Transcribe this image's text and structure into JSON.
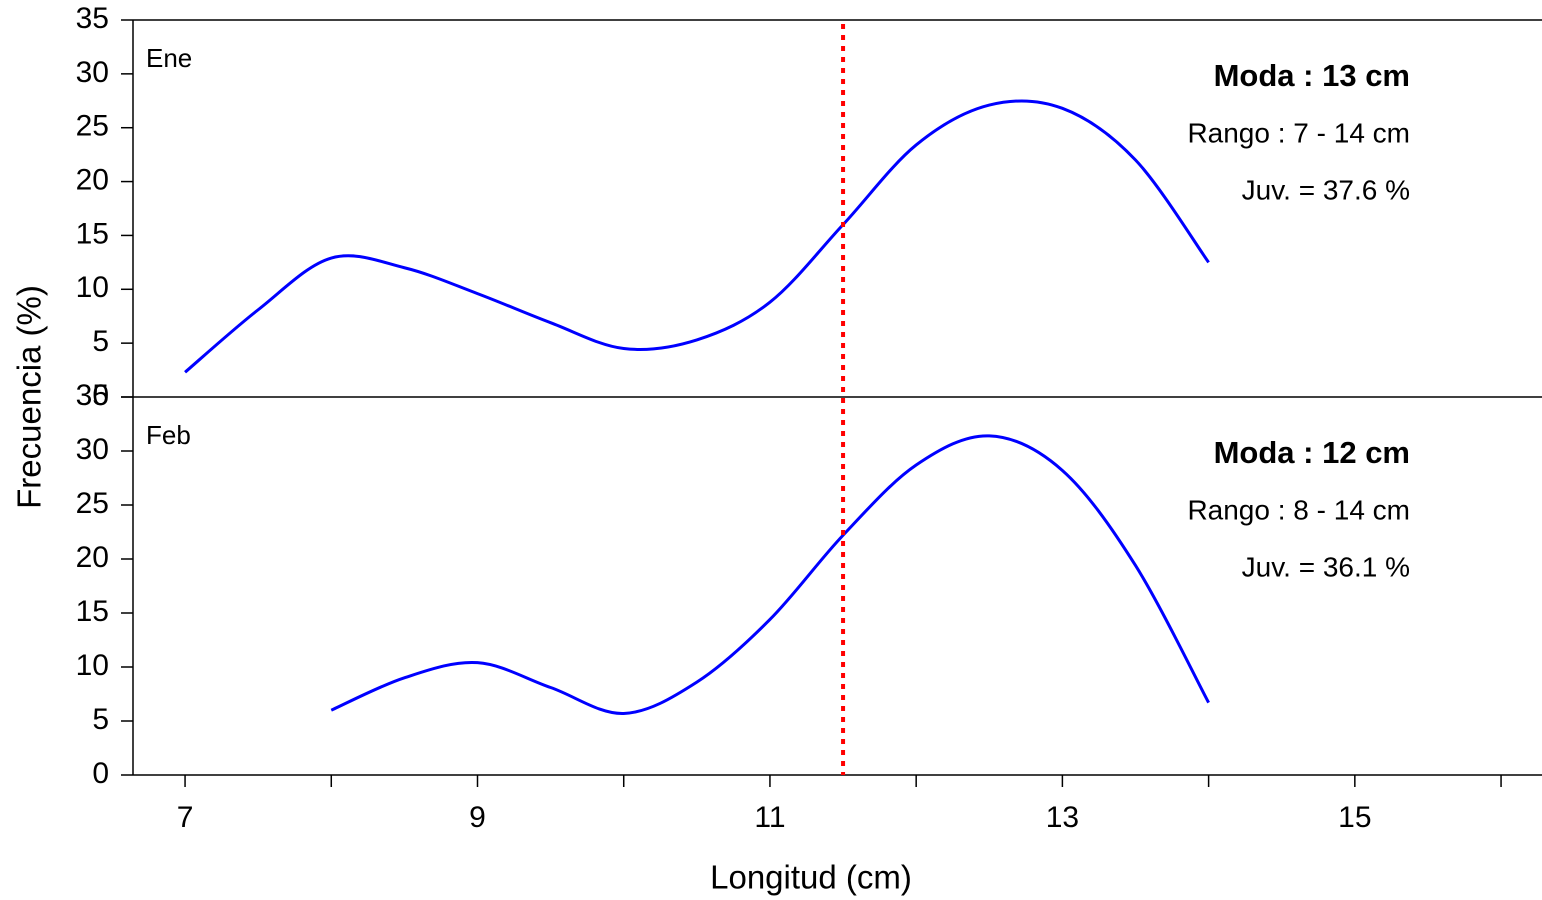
{
  "chart_data": {
    "type": "line",
    "xlabel": "Longitud (cm)",
    "ylabel": "Frecuencia (%)",
    "xlim": [
      6.644,
      16.28
    ],
    "xticks": [
      7,
      9,
      11,
      13,
      15
    ],
    "xminorticks": [
      8,
      10,
      12,
      14,
      16
    ],
    "vline": 11.5,
    "vline_color": "#ff0000",
    "panels": [
      {
        "label": "Ene",
        "color": "#0000ff",
        "x": [
          7,
          7.5,
          8,
          8.5,
          9,
          9.5,
          10,
          10.5,
          11,
          11.5,
          12,
          12.5,
          13,
          13.5,
          14
        ],
        "values": [
          2.3,
          8.1,
          12.9,
          12.0,
          9.6,
          6.9,
          4.5,
          5.3,
          8.8,
          16.0,
          23.4,
          27.1,
          26.8,
          22.0,
          12.5
        ],
        "ylim": [
          0,
          35
        ],
        "yticks": [
          0,
          5,
          10,
          15,
          20,
          25,
          30,
          35
        ],
        "annotations": [
          "Moda : 13 cm",
          "Rango : 7 - 14 cm",
          "Juv. = 37.6 %"
        ]
      },
      {
        "label": "Feb",
        "color": "#0000ff",
        "x": [
          8,
          8.5,
          9,
          9.5,
          10,
          10.5,
          11,
          11.5,
          12,
          12.5,
          13,
          13.5,
          14
        ],
        "values": [
          6.0,
          9.0,
          10.4,
          8.1,
          5.7,
          8.6,
          14.4,
          22.2,
          28.7,
          31.4,
          28.2,
          19.4,
          6.7
        ],
        "ylim": [
          0,
          35
        ],
        "yticks": [
          0,
          5,
          10,
          15,
          20,
          25,
          30,
          35
        ],
        "annotations": [
          "Moda : 12 cm",
          "Rango : 8 - 14 cm",
          "Juv. = 36.1 %"
        ]
      }
    ]
  }
}
